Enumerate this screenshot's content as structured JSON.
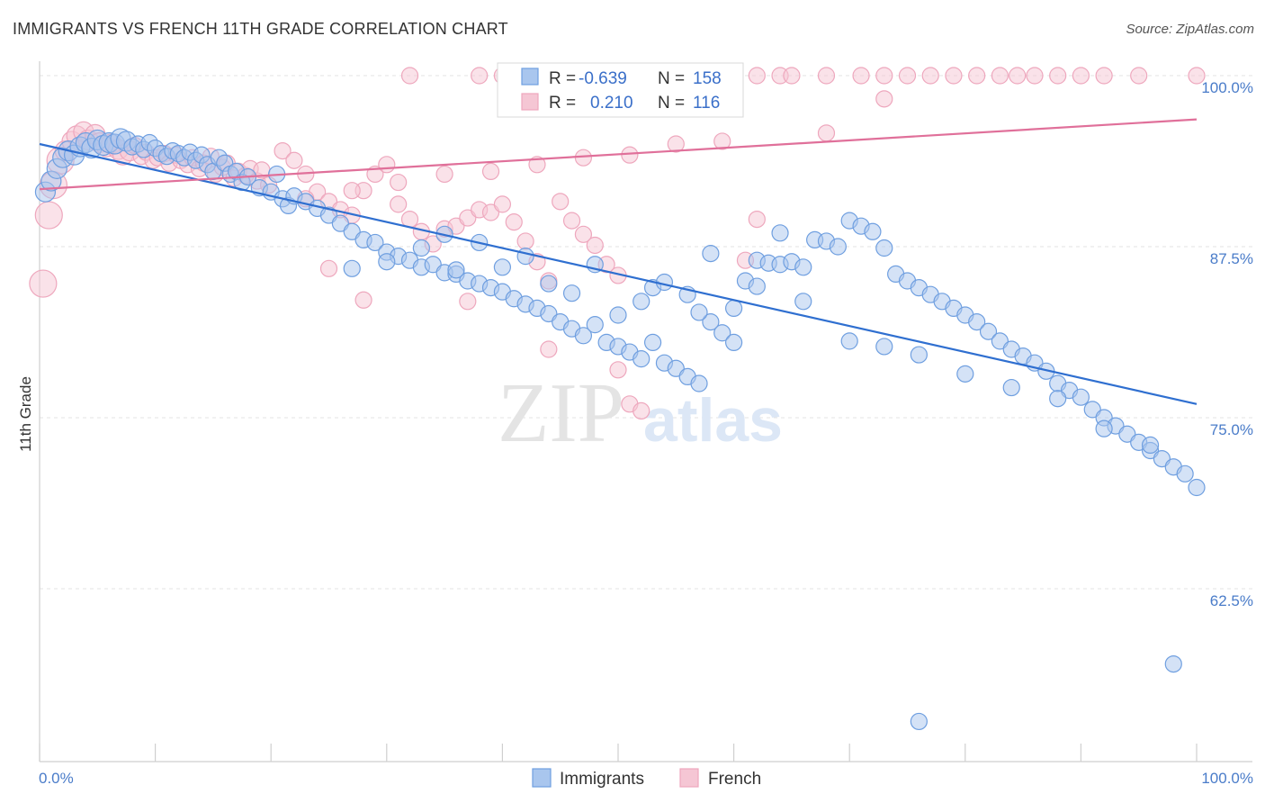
{
  "title": "IMMIGRANTS VS FRENCH 11TH GRADE CORRELATION CHART",
  "source": "Source: ZipAtlas.com",
  "watermark": {
    "zip": "ZIP",
    "atlas": "atlas"
  },
  "chart_data": {
    "type": "scatter",
    "title": "IMMIGRANTS VS FRENCH 11TH GRADE CORRELATION CHART",
    "ylabel": "11th Grade",
    "xlabel": "",
    "xlim": [
      0,
      100
    ],
    "ylim": [
      50,
      101.5
    ],
    "x_tick_labels": [
      {
        "value": 0,
        "label": "0.0%"
      },
      {
        "value": 100,
        "label": "100.0%"
      }
    ],
    "y_tick_labels": [
      {
        "value": 100,
        "label": "100.0%"
      },
      {
        "value": 87.5,
        "label": "87.5%"
      },
      {
        "value": 75,
        "label": "75.0%"
      },
      {
        "value": 62.5,
        "label": "62.5%"
      }
    ],
    "grid": true,
    "legend_position": "top-center",
    "series": [
      {
        "name": "Immigrants",
        "color": "#6f9fe0",
        "fill": "#a9c6ee",
        "line_color": "#2f6fd0",
        "R": "-0.639",
        "N": "158",
        "trend": {
          "x": [
            0,
            100
          ],
          "y": [
            95.0,
            76.0
          ]
        },
        "points": [
          [
            0.5,
            91.5
          ],
          [
            1,
            92.3
          ],
          [
            1.5,
            93.2
          ],
          [
            2,
            94.0
          ],
          [
            2.5,
            94.5
          ],
          [
            3,
            94.2
          ],
          [
            3.5,
            94.8
          ],
          [
            4,
            95.1
          ],
          [
            4.5,
            94.7
          ],
          [
            5,
            95.3
          ],
          [
            5.5,
            94.9
          ],
          [
            6,
            95.1
          ],
          [
            6.5,
            95.0
          ],
          [
            7,
            95.4
          ],
          [
            7.5,
            95.2
          ],
          [
            8,
            94.8
          ],
          [
            8.5,
            95.0
          ],
          [
            9,
            94.6
          ],
          [
            9.5,
            95.1
          ],
          [
            10,
            94.7
          ],
          [
            10.5,
            94.3
          ],
          [
            11,
            94.1
          ],
          [
            11.5,
            94.5
          ],
          [
            12,
            94.3
          ],
          [
            12.5,
            94.0
          ],
          [
            13,
            94.4
          ],
          [
            13.5,
            93.8
          ],
          [
            14,
            94.2
          ],
          [
            14.5,
            93.5
          ],
          [
            15,
            93.0
          ],
          [
            15.5,
            94.0
          ],
          [
            16,
            93.6
          ],
          [
            16.5,
            92.8
          ],
          [
            17,
            93.0
          ],
          [
            17.5,
            92.2
          ],
          [
            18,
            92.6
          ],
          [
            19,
            91.8
          ],
          [
            20,
            91.5
          ],
          [
            20.5,
            92.8
          ],
          [
            21,
            91.0
          ],
          [
            21.5,
            90.5
          ],
          [
            22,
            91.2
          ],
          [
            23,
            90.8
          ],
          [
            24,
            90.3
          ],
          [
            25,
            89.8
          ],
          [
            26,
            89.2
          ],
          [
            27,
            88.6
          ],
          [
            28,
            88.0
          ],
          [
            29,
            87.8
          ],
          [
            30,
            87.1
          ],
          [
            31,
            86.8
          ],
          [
            32,
            86.5
          ],
          [
            33,
            86.0
          ],
          [
            34,
            86.2
          ],
          [
            35,
            85.6
          ],
          [
            36,
            85.5
          ],
          [
            37,
            85.0
          ],
          [
            38,
            84.8
          ],
          [
            39,
            84.5
          ],
          [
            40,
            84.2
          ],
          [
            41,
            83.7
          ],
          [
            42,
            83.3
          ],
          [
            43,
            83.0
          ],
          [
            44,
            82.6
          ],
          [
            45,
            82.0
          ],
          [
            46,
            81.5
          ],
          [
            47,
            81.0
          ],
          [
            48,
            81.8
          ],
          [
            49,
            80.5
          ],
          [
            50,
            80.2
          ],
          [
            51,
            79.8
          ],
          [
            52,
            79.3
          ],
          [
            53,
            80.5
          ],
          [
            54,
            79.0
          ],
          [
            55,
            78.6
          ],
          [
            56,
            78.0
          ],
          [
            57,
            77.5
          ],
          [
            58,
            82.0
          ],
          [
            59,
            81.2
          ],
          [
            60,
            80.5
          ],
          [
            61,
            85.0
          ],
          [
            62,
            86.5
          ],
          [
            63,
            86.3
          ],
          [
            64,
            86.2
          ],
          [
            65,
            86.4
          ],
          [
            66,
            86.0
          ],
          [
            67,
            88.0
          ],
          [
            68,
            87.9
          ],
          [
            69,
            87.5
          ],
          [
            70,
            89.4
          ],
          [
            71,
            89.0
          ],
          [
            72,
            88.6
          ],
          [
            73,
            87.4
          ],
          [
            74,
            85.5
          ],
          [
            75,
            85.0
          ],
          [
            76,
            84.5
          ],
          [
            77,
            84.0
          ],
          [
            78,
            83.5
          ],
          [
            79,
            83.0
          ],
          [
            80,
            82.5
          ],
          [
            81,
            82.0
          ],
          [
            82,
            81.3
          ],
          [
            83,
            80.6
          ],
          [
            84,
            80.0
          ],
          [
            85,
            79.5
          ],
          [
            86,
            79.0
          ],
          [
            87,
            78.4
          ],
          [
            88,
            77.5
          ],
          [
            89,
            77.0
          ],
          [
            90,
            76.5
          ],
          [
            91,
            75.6
          ],
          [
            92,
            75.0
          ],
          [
            93,
            74.4
          ],
          [
            94,
            73.8
          ],
          [
            95,
            73.2
          ],
          [
            96,
            72.6
          ],
          [
            97,
            72.0
          ],
          [
            98,
            71.4
          ],
          [
            99,
            70.9
          ],
          [
            100,
            69.9
          ],
          [
            64,
            88.5
          ],
          [
            58,
            87.0
          ],
          [
            53,
            84.5
          ],
          [
            48,
            86.2
          ],
          [
            52,
            83.5
          ],
          [
            56,
            84.0
          ],
          [
            60,
            83.0
          ],
          [
            44,
            84.8
          ],
          [
            40,
            86.0
          ],
          [
            38,
            87.8
          ],
          [
            36,
            85.8
          ],
          [
            33,
            87.4
          ],
          [
            30,
            86.4
          ],
          [
            27,
            85.9
          ],
          [
            35,
            88.4
          ],
          [
            42,
            86.8
          ],
          [
            46,
            84.1
          ],
          [
            50,
            82.5
          ],
          [
            54,
            84.9
          ],
          [
            57,
            82.7
          ],
          [
            62,
            84.6
          ],
          [
            66,
            83.5
          ],
          [
            70,
            80.6
          ],
          [
            73,
            80.2
          ],
          [
            76,
            79.6
          ],
          [
            80,
            78.2
          ],
          [
            84,
            77.2
          ],
          [
            88,
            76.4
          ],
          [
            92,
            74.2
          ],
          [
            96,
            73.0
          ],
          [
            98,
            57.0
          ],
          [
            76,
            52.8
          ]
        ]
      },
      {
        "name": "French",
        "color": "#eea7bd",
        "fill": "#f5c6d4",
        "line_color": "#e0709a",
        "R": "0.210",
        "N": "116",
        "trend": {
          "x": [
            0,
            100
          ],
          "y": [
            91.7,
            96.8
          ]
        },
        "points": [
          [
            0.3,
            84.8
          ],
          [
            0.8,
            89.8
          ],
          [
            1.2,
            92.0
          ],
          [
            1.8,
            93.8
          ],
          [
            2.2,
            94.5
          ],
          [
            2.8,
            95.2
          ],
          [
            3.2,
            95.6
          ],
          [
            3.8,
            95.9
          ],
          [
            4.2,
            95.3
          ],
          [
            4.8,
            95.7
          ],
          [
            5.2,
            95.1
          ],
          [
            5.8,
            94.8
          ],
          [
            6.2,
            95.0
          ],
          [
            6.8,
            94.6
          ],
          [
            7.2,
            94.2
          ],
          [
            7.8,
            94.5
          ],
          [
            8.2,
            94.9
          ],
          [
            8.8,
            94.1
          ],
          [
            9.2,
            94.4
          ],
          [
            9.8,
            93.8
          ],
          [
            10.2,
            94.0
          ],
          [
            10.8,
            94.3
          ],
          [
            11.2,
            93.6
          ],
          [
            11.8,
            94.2
          ],
          [
            12.2,
            93.8
          ],
          [
            12.8,
            93.5
          ],
          [
            13.2,
            94.0
          ],
          [
            13.8,
            93.2
          ],
          [
            14.2,
            93.6
          ],
          [
            14.8,
            94.1
          ],
          [
            15.2,
            92.8
          ],
          [
            15.8,
            93.3
          ],
          [
            16.2,
            93.6
          ],
          [
            16.8,
            92.5
          ],
          [
            17.2,
            93.0
          ],
          [
            17.8,
            92.7
          ],
          [
            18.2,
            93.2
          ],
          [
            18.8,
            92.3
          ],
          [
            19.2,
            93.1
          ],
          [
            19.8,
            92.0
          ],
          [
            21,
            94.5
          ],
          [
            22,
            93.8
          ],
          [
            23,
            92.8
          ],
          [
            24,
            91.5
          ],
          [
            25,
            90.8
          ],
          [
            26,
            90.2
          ],
          [
            27,
            89.8
          ],
          [
            28,
            91.6
          ],
          [
            29,
            92.8
          ],
          [
            30,
            93.5
          ],
          [
            31,
            90.6
          ],
          [
            32,
            89.5
          ],
          [
            33,
            88.6
          ],
          [
            34,
            87.7
          ],
          [
            35,
            88.8
          ],
          [
            36,
            89.0
          ],
          [
            37,
            89.6
          ],
          [
            38,
            90.2
          ],
          [
            39,
            90.0
          ],
          [
            40,
            90.6
          ],
          [
            41,
            89.3
          ],
          [
            42,
            87.9
          ],
          [
            43,
            86.4
          ],
          [
            44,
            85.0
          ],
          [
            45,
            90.8
          ],
          [
            46,
            89.4
          ],
          [
            47,
            88.4
          ],
          [
            48,
            87.6
          ],
          [
            49,
            86.2
          ],
          [
            50,
            85.4
          ],
          [
            32,
            100
          ],
          [
            38,
            100
          ],
          [
            40,
            100
          ],
          [
            41,
            100
          ],
          [
            42,
            100
          ],
          [
            44,
            100
          ],
          [
            46,
            100
          ],
          [
            48,
            100
          ],
          [
            50,
            100
          ],
          [
            52,
            100
          ],
          [
            54,
            100
          ],
          [
            56,
            100
          ],
          [
            58,
            100
          ],
          [
            60,
            100
          ],
          [
            62,
            100
          ],
          [
            64,
            100
          ],
          [
            65,
            100
          ],
          [
            68,
            100
          ],
          [
            71,
            100
          ],
          [
            73,
            100
          ],
          [
            75,
            100
          ],
          [
            77,
            100
          ],
          [
            79,
            100
          ],
          [
            81,
            100
          ],
          [
            83,
            100
          ],
          [
            84.5,
            100
          ],
          [
            86,
            100
          ],
          [
            88,
            100
          ],
          [
            90,
            100
          ],
          [
            92,
            100
          ],
          [
            95,
            100
          ],
          [
            100,
            100
          ],
          [
            73,
            98.3
          ],
          [
            59,
            95.2
          ],
          [
            55,
            95.0
          ],
          [
            51,
            94.2
          ],
          [
            47,
            94.0
          ],
          [
            43,
            93.5
          ],
          [
            39,
            93.0
          ],
          [
            35,
            92.8
          ],
          [
            31,
            92.2
          ],
          [
            27,
            91.6
          ],
          [
            23,
            91.0
          ],
          [
            28,
            83.6
          ],
          [
            37,
            83.5
          ],
          [
            44,
            80.0
          ],
          [
            50,
            78.5
          ],
          [
            51,
            76.0
          ],
          [
            52,
            75.5
          ],
          [
            62,
            89.5
          ],
          [
            61,
            86.5
          ],
          [
            68,
            95.8
          ],
          [
            25,
            85.9
          ]
        ]
      }
    ]
  },
  "legend": {
    "r_label": "R =",
    "n_label": "N =",
    "rows": [
      {
        "series": "Immigrants",
        "r": "-0.639",
        "n": "158"
      },
      {
        "series": "French",
        "r": "0.210",
        "n": "116"
      }
    ]
  },
  "bottom_legend": [
    "Immigrants",
    "French"
  ]
}
